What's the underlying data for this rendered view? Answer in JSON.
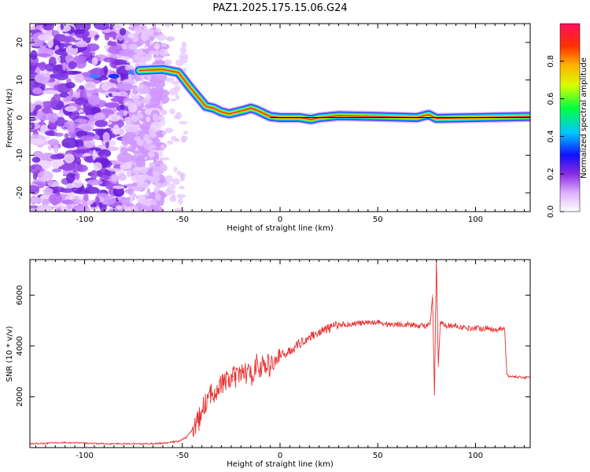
{
  "title": "PAZ1.2025.175.15.06.G24",
  "chart_data": [
    {
      "type": "heatmap",
      "xlabel": "Height of straight line (km)",
      "ylabel": "Frequency (Hz)",
      "xlim": [
        -128,
        128
      ],
      "ylim": [
        -25,
        25
      ],
      "xticks": [
        -100,
        -50,
        0,
        50,
        100
      ],
      "yticks": [
        -20,
        -10,
        0,
        10,
        20
      ],
      "colorbar": {
        "label": "Normalized spectral amplitude",
        "range": [
          0,
          1
        ],
        "ticks": [
          "0.0",
          "0.2",
          "0.4",
          "0.6",
          "0.8"
        ]
      },
      "ridge": {
        "x": [
          -72,
          -60,
          -52,
          -46,
          -42,
          -38,
          -34,
          -30,
          -26,
          -22,
          -18,
          -15,
          -12,
          -8,
          -5,
          0,
          10,
          16,
          20,
          30,
          50,
          70,
          76,
          80,
          100,
          128
        ],
        "y": [
          12.5,
          12.8,
          12,
          8,
          5.5,
          3,
          2.5,
          1.5,
          1,
          1.5,
          2,
          2.5,
          2,
          1,
          0.3,
          0,
          0,
          -0.5,
          0,
          0.5,
          0.3,
          0,
          0.8,
          -0.2,
          0,
          0.3
        ]
      },
      "reference_line": {
        "y": 0
      }
    },
    {
      "type": "line",
      "xlabel": "Height of straight line (km)",
      "ylabel": "SNR (10 * v/v)",
      "xlim": [
        -128,
        128
      ],
      "ylim": [
        0,
        7400
      ],
      "xticks": [
        -100,
        -50,
        0,
        50,
        100
      ],
      "yticks": [
        2000,
        4000,
        6000
      ],
      "series": [
        {
          "color": "#e8302f",
          "x": [
            -128,
            -110,
            -90,
            -70,
            -60,
            -52,
            -48,
            -45,
            -42,
            -40,
            -38,
            -35,
            -33,
            -30,
            -27,
            -24,
            -22,
            -20,
            -18,
            -15,
            -12,
            -10,
            -8,
            -5,
            0,
            5,
            10,
            15,
            20,
            25,
            30,
            35,
            40,
            45,
            50,
            55,
            60,
            65,
            70,
            75,
            77,
            78,
            79,
            80,
            81,
            82,
            85,
            90,
            95,
            100,
            105,
            110,
            114,
            115,
            116,
            117,
            118,
            120,
            125,
            128
          ],
          "y": [
            150,
            200,
            150,
            150,
            170,
            250,
            400,
            700,
            1000,
            1400,
            1800,
            2100,
            2300,
            2500,
            2600,
            2800,
            2700,
            2900,
            3000,
            2800,
            3300,
            3100,
            3300,
            3200,
            3600,
            3800,
            4100,
            4350,
            4550,
            4700,
            4850,
            4850,
            4900,
            4900,
            4950,
            4850,
            4850,
            4850,
            4800,
            4800,
            4900,
            6000,
            2100,
            7300,
            3200,
            4900,
            4800,
            4800,
            4700,
            4700,
            4700,
            4650,
            4700,
            4600,
            2900,
            2800,
            2800,
            2800,
            2750,
            2800
          ]
        }
      ]
    }
  ]
}
